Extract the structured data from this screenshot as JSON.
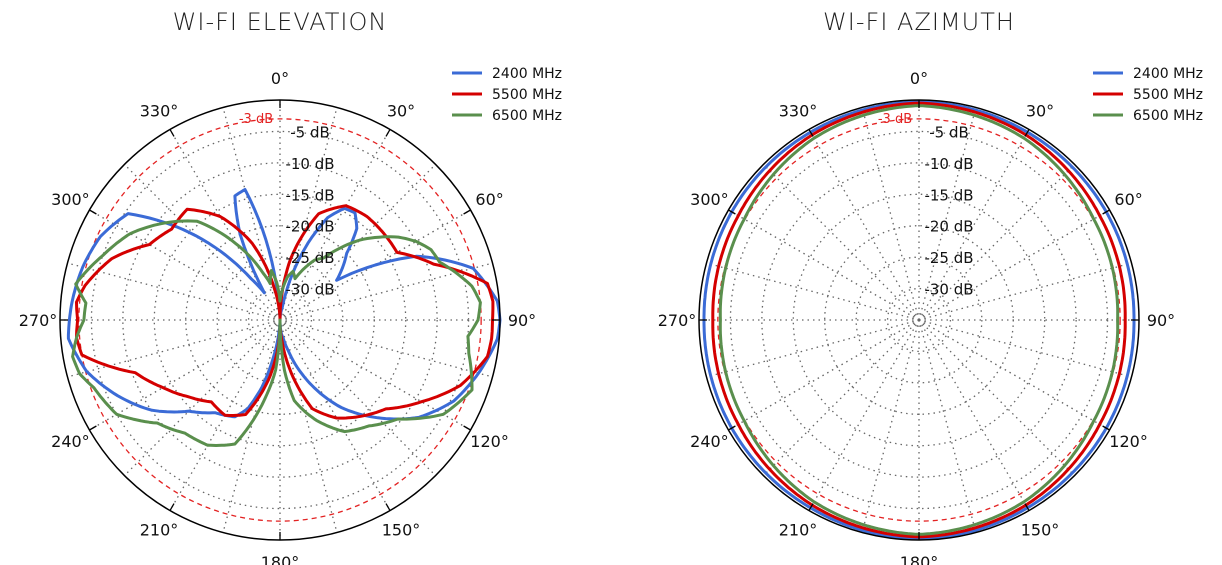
{
  "chart_data": [
    {
      "type": "polar",
      "title": "WI-FI ELEVATION",
      "r_ticks": [
        "-5 dB",
        "-10 dB",
        "-15 dB",
        "-20 dB",
        "-25 dB",
        "-30 dB"
      ],
      "r_values": [
        -5,
        -10,
        -15,
        -20,
        -25,
        -30
      ],
      "r_range_db": [
        -35,
        0
      ],
      "angle_ticks": [
        "0°",
        "30°",
        "60°",
        "90°",
        "120°",
        "150°",
        "180°",
        "210°",
        "240°",
        "270°",
        "300°",
        "330°"
      ],
      "angle_values": [
        0,
        30,
        60,
        90,
        120,
        150,
        180,
        210,
        240,
        270,
        300,
        330
      ],
      "reference": {
        "label": "-3 dB",
        "value": -3,
        "color": "#e32222"
      },
      "grid": true,
      "legend": "top-right",
      "series": [
        {
          "name": "2400 MHz",
          "color": "#3b6bd6",
          "angles": [
            0,
            10,
            20,
            25,
            30,
            35,
            40,
            45,
            55,
            65,
            75,
            85,
            90,
            95,
            105,
            115,
            125,
            135,
            145,
            155,
            165,
            170,
            175,
            180,
            185,
            190,
            195,
            200,
            205,
            210,
            215,
            225,
            235,
            245,
            255,
            265,
            270,
            275,
            285,
            295,
            305,
            315,
            325,
            330,
            335,
            340,
            345,
            350,
            355,
            360
          ],
          "gains": [
            -35,
            -33,
            -22,
            -17,
            -14.5,
            -14.2,
            -16,
            -20,
            -24,
            -11,
            -3.2,
            -0.3,
            0,
            -0.3,
            -2.3,
            -4.5,
            -8,
            -13,
            -18,
            -24,
            -30,
            -32,
            -33,
            -35,
            -33,
            -29,
            -24,
            -20,
            -18,
            -17.5,
            -17,
            -14.5,
            -10,
            -6.5,
            -3.2,
            -1.2,
            -1.5,
            -1.8,
            -2.5,
            -3.5,
            -5.5,
            -16,
            -27,
            -30,
            -20,
            -14,
            -13.5,
            -22,
            -31,
            -35
          ]
        },
        {
          "name": "5500 MHz",
          "color": "#d40000",
          "angles": [
            0,
            10,
            20,
            30,
            40,
            50,
            60,
            70,
            80,
            85,
            90,
            95,
            100,
            110,
            120,
            130,
            140,
            150,
            160,
            170,
            175,
            180,
            185,
            190,
            200,
            210,
            220,
            230,
            240,
            250,
            260,
            265,
            270,
            275,
            280,
            290,
            300,
            310,
            320,
            330,
            340,
            350,
            355,
            360
          ],
          "gains": [
            -35,
            -25,
            -17,
            -14,
            -13.5,
            -13.5,
            -13.5,
            -9,
            -1.5,
            -1,
            -1.2,
            -1.2,
            -1.5,
            -4.5,
            -9,
            -13,
            -15,
            -17,
            -20,
            -28,
            -32,
            -34,
            -30,
            -26,
            -19,
            -17.5,
            -18,
            -16,
            -13.5,
            -10.5,
            -3,
            -2.5,
            -2.8,
            -2.5,
            -3.5,
            -6.5,
            -11,
            -12.5,
            -12,
            -16,
            -22,
            -30,
            -33,
            -35
          ]
        },
        {
          "name": "6500 MHz",
          "color": "#5a8f4d",
          "angles": [
            0,
            5,
            10,
            15,
            20,
            25,
            30,
            35,
            40,
            45,
            50,
            55,
            60,
            65,
            70,
            75,
            80,
            85,
            90,
            95,
            100,
            110,
            120,
            130,
            140,
            150,
            160,
            170,
            175,
            180,
            185,
            190,
            200,
            210,
            220,
            230,
            240,
            250,
            255,
            260,
            265,
            270,
            275,
            280,
            290,
            300,
            310,
            320,
            330,
            340,
            345,
            350,
            355,
            360
          ],
          "gains": [
            -32,
            -30,
            -28,
            -27,
            -28,
            -26,
            -24,
            -23,
            -20,
            -17,
            -14.5,
            -12,
            -10,
            -8.5,
            -8,
            -6,
            -4,
            -3,
            -3.5,
            -5,
            -4.5,
            -2.5,
            -5,
            -10.5,
            -13,
            -14.5,
            -18,
            -22,
            -27,
            -35,
            -27,
            -23,
            -14,
            -12,
            -11.5,
            -9.5,
            -5,
            -3.5,
            -2,
            -1.5,
            -2.5,
            -3.8,
            -4,
            -2,
            -5,
            -7.5,
            -11,
            -14.5,
            -21,
            -27,
            -29,
            -27,
            -29,
            -32
          ]
        }
      ]
    },
    {
      "type": "polar",
      "title": "WI-FI AZIMUTH",
      "r_ticks": [
        "-5 dB",
        "-10 dB",
        "-15 dB",
        "-20 dB",
        "-25 dB",
        "-30 dB"
      ],
      "r_values": [
        -5,
        -10,
        -15,
        -20,
        -25,
        -30
      ],
      "r_range_db": [
        -35,
        0
      ],
      "angle_ticks": [
        "0°",
        "30°",
        "60°",
        "90°",
        "120°",
        "150°",
        "180°",
        "210°",
        "240°",
        "270°",
        "300°",
        "330°"
      ],
      "angle_values": [
        0,
        30,
        60,
        90,
        120,
        150,
        180,
        210,
        240,
        270,
        300,
        330
      ],
      "reference": {
        "label": "-3 dB",
        "value": -3,
        "color": "#e32222"
      },
      "grid": true,
      "legend": "top-right",
      "series": [
        {
          "name": "2400 MHz",
          "color": "#3b6bd6",
          "angles": [
            0,
            30,
            60,
            90,
            120,
            150,
            180,
            210,
            240,
            270,
            300,
            330,
            360
          ],
          "gains": [
            -0.3,
            -0.5,
            -0.6,
            -0.8,
            -0.6,
            -0.5,
            -0.2,
            -0.5,
            -0.6,
            -0.8,
            -0.6,
            -0.5,
            -0.3
          ]
        },
        {
          "name": "5500 MHz",
          "color": "#d40000",
          "angles": [
            0,
            30,
            60,
            90,
            120,
            150,
            180,
            210,
            240,
            270,
            300,
            330,
            360
          ],
          "gains": [
            -0.5,
            -1.0,
            -1.8,
            -2.2,
            -1.8,
            -1.0,
            -0.5,
            -1.0,
            -1.8,
            -2.2,
            -1.8,
            -1.0,
            -0.5
          ]
        },
        {
          "name": "6500 MHz",
          "color": "#5a8f4d",
          "angles": [
            0,
            30,
            60,
            90,
            120,
            150,
            180,
            210,
            240,
            270,
            300,
            330,
            360
          ],
          "gains": [
            -0.9,
            -1.6,
            -2.9,
            -3.4,
            -2.9,
            -1.6,
            -0.9,
            -1.6,
            -2.9,
            -3.4,
            -2.9,
            -1.6,
            -0.9
          ]
        }
      ]
    }
  ]
}
